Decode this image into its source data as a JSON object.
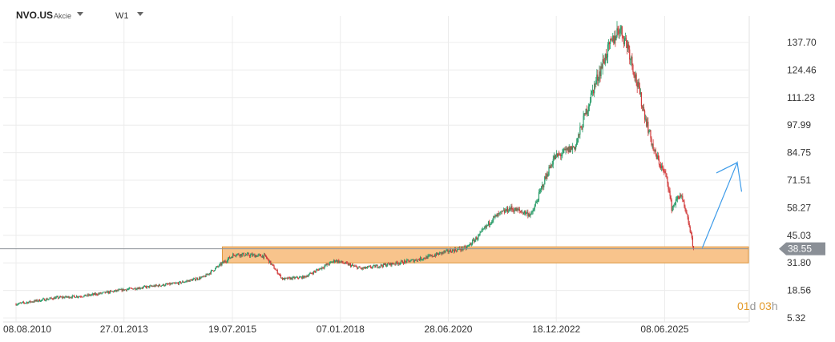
{
  "toolbar": {
    "symbol": "NVO.US",
    "symbol_type": "Akcie",
    "interval": "W1"
  },
  "timer": {
    "days": "01",
    "days_unit": "d",
    "hours": "03",
    "hours_unit": "h"
  },
  "colors": {
    "up": "#2a9d6a",
    "down": "#d13a3a",
    "zone_fill": "#f8c48c",
    "zone_border": "#e0963c",
    "arrow": "#3d9be9",
    "price_tag": "#8a8f96"
  },
  "chart_data": {
    "type": "line",
    "x_ticks": [
      "08.08.2010",
      "27.01.2013",
      "19.07.2015",
      "07.01.2018",
      "28.06.2020",
      "18.12.2022",
      "08.06.2025"
    ],
    "y_ticks": [
      5.32,
      18.56,
      31.8,
      45.03,
      58.27,
      71.51,
      84.75,
      97.99,
      111.23,
      124.46,
      137.7
    ],
    "ylim": [
      5.32,
      151
    ],
    "current_price": 38.55,
    "support_zone": [
      31.8,
      39.5
    ],
    "series": [
      {
        "values": [
          [
            2010.6,
            12
          ],
          [
            2011.5,
            15
          ],
          [
            2012.2,
            16
          ],
          [
            2013.1,
            19
          ],
          [
            2014.3,
            22
          ],
          [
            2014.9,
            25
          ],
          [
            2015.6,
            36
          ],
          [
            2016.3,
            35
          ],
          [
            2016.7,
            24
          ],
          [
            2017.2,
            25
          ],
          [
            2017.9,
            33
          ],
          [
            2018.5,
            29
          ],
          [
            2019.1,
            31
          ],
          [
            2019.7,
            33
          ],
          [
            2020.1,
            35
          ],
          [
            2020.4,
            37
          ],
          [
            2020.9,
            39
          ],
          [
            2021.2,
            45
          ],
          [
            2021.5,
            53
          ],
          [
            2021.9,
            58
          ],
          [
            2022.4,
            55
          ],
          [
            2022.7,
            72
          ],
          [
            2022.9,
            82
          ],
          [
            2023.4,
            88
          ],
          [
            2023.8,
            115
          ],
          [
            2024.1,
            132
          ],
          [
            2024.4,
            145
          ],
          [
            2024.6,
            136
          ],
          [
            2024.9,
            110
          ],
          [
            2025.2,
            85
          ],
          [
            2025.5,
            72
          ],
          [
            2025.6,
            58
          ],
          [
            2025.8,
            65
          ],
          [
            2026.0,
            50
          ],
          [
            2026.1,
            38.55
          ]
        ]
      }
    ],
    "projection_arrow": [
      [
        2026.3,
        39
      ],
      [
        2027.1,
        80
      ],
      [
        2027.2,
        66
      ]
    ]
  }
}
